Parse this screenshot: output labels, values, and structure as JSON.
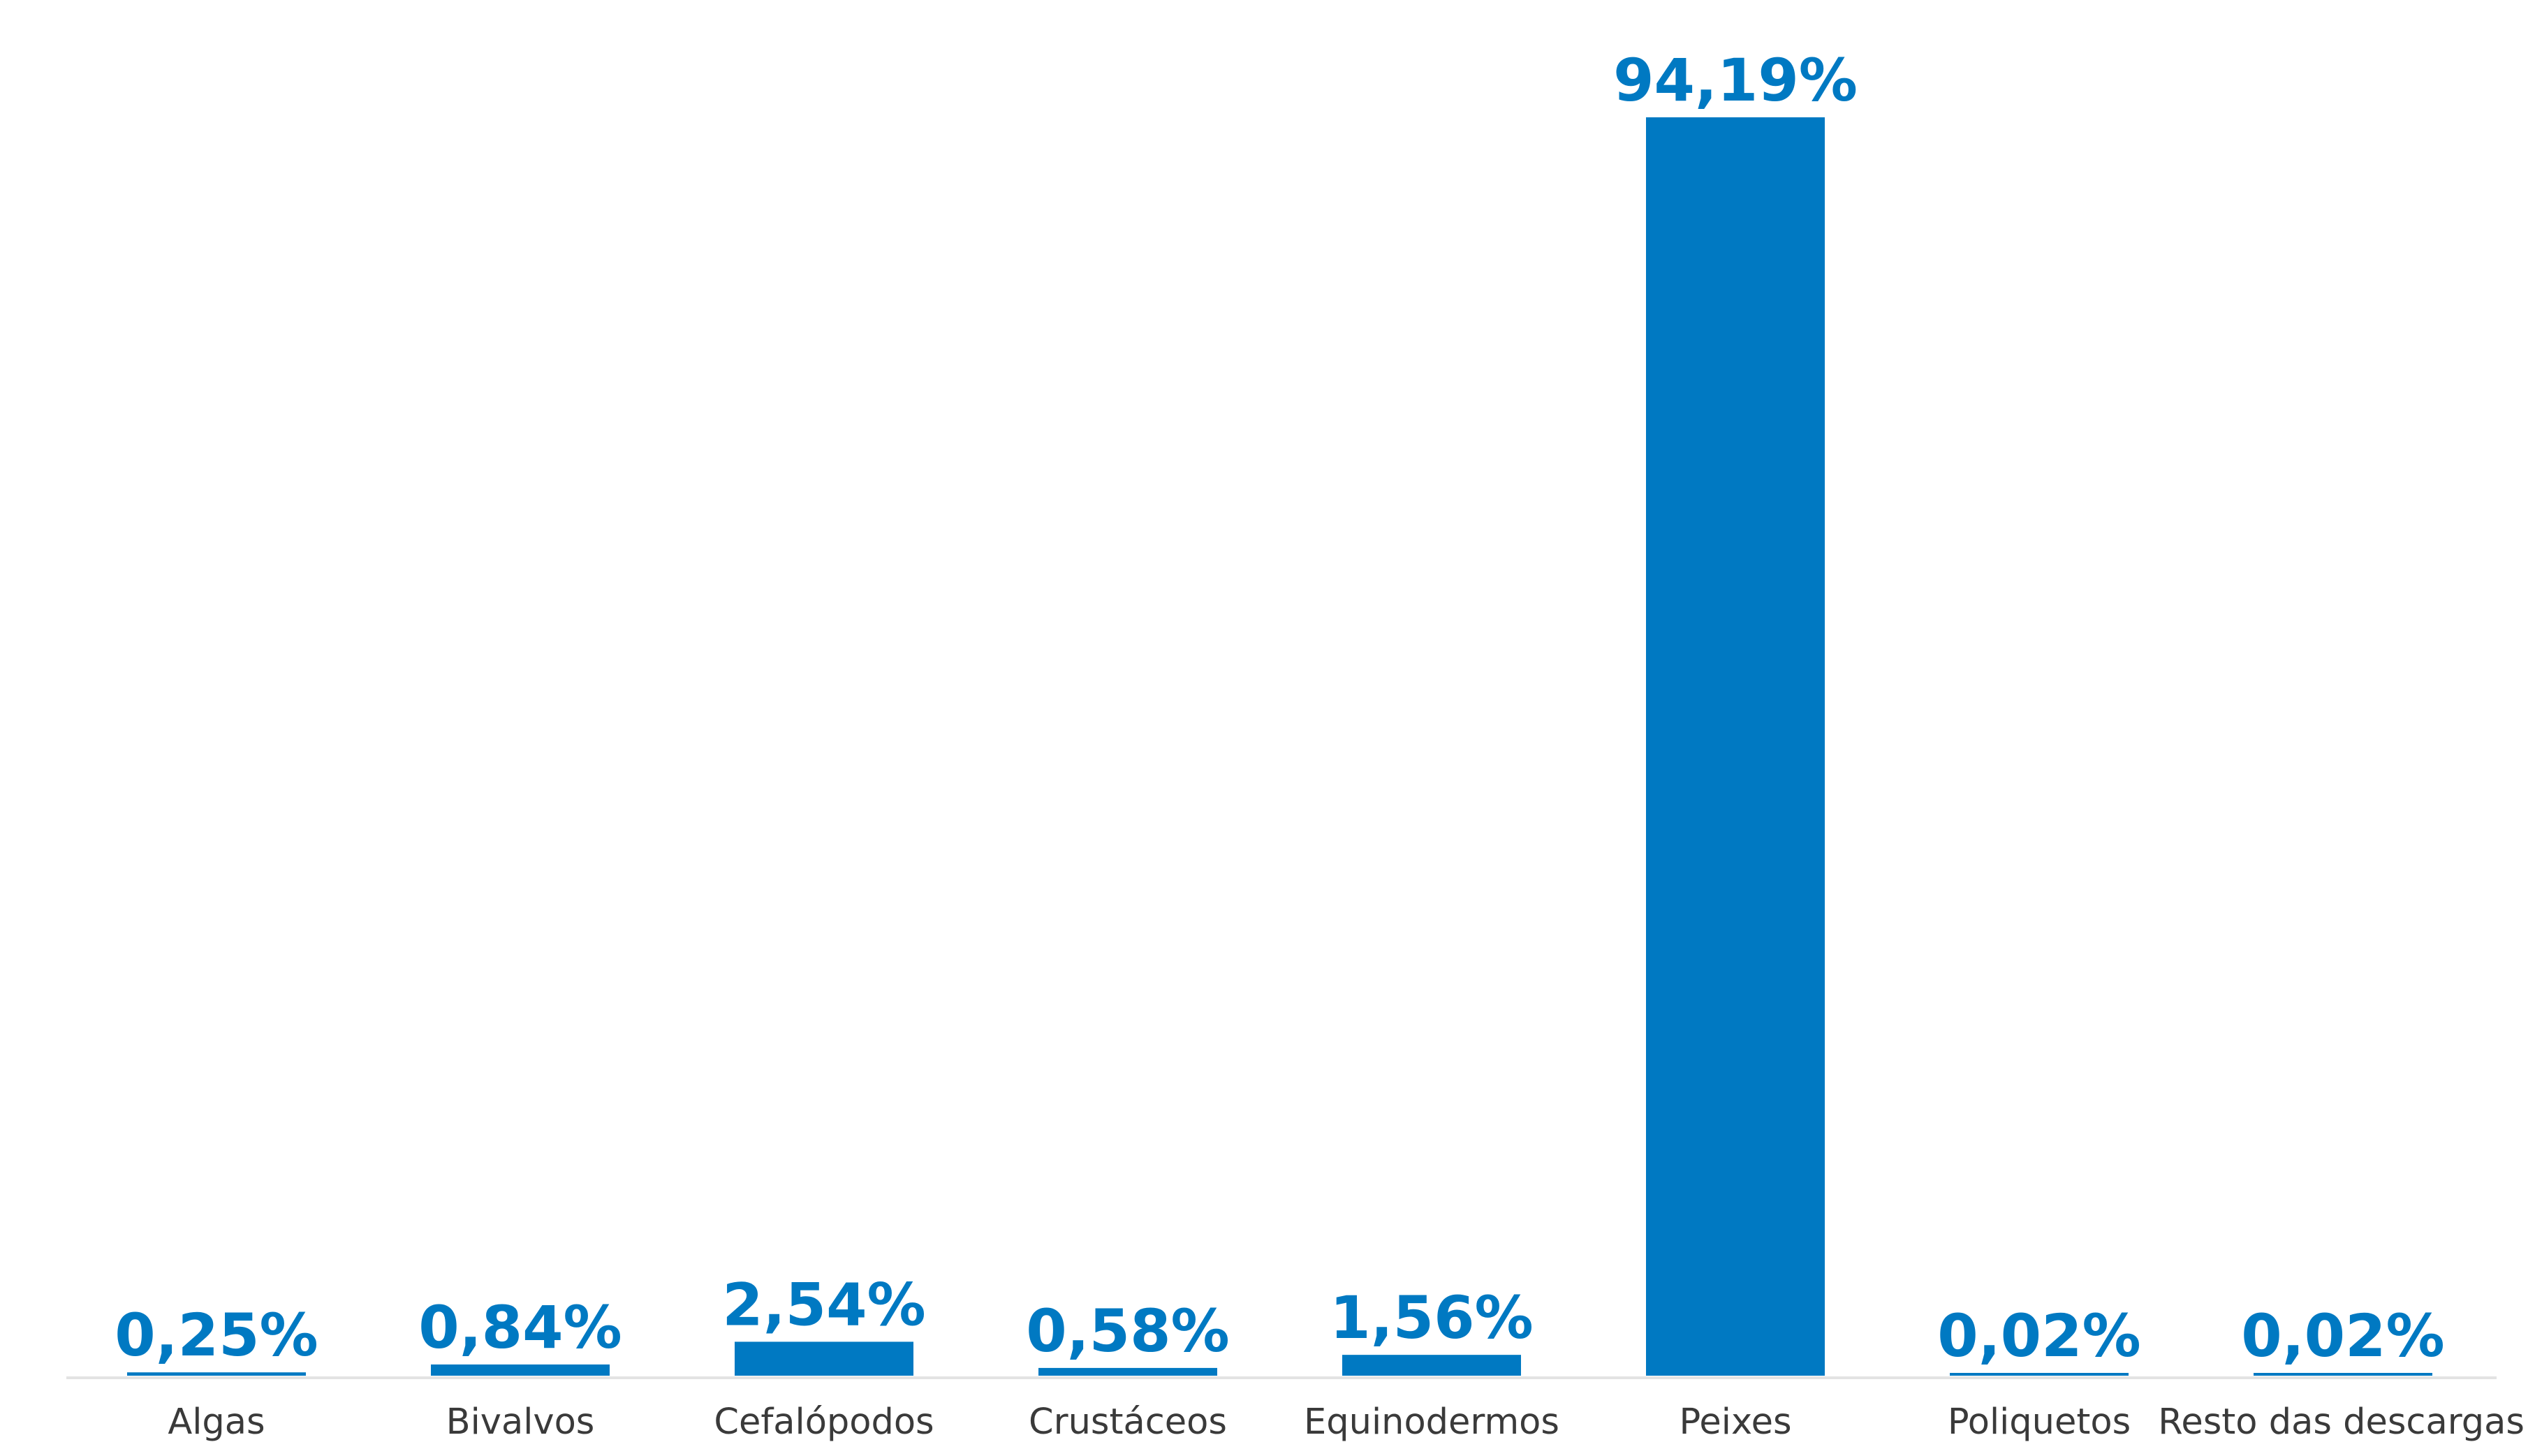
{
  "chart_data": {
    "type": "bar",
    "categories": [
      "Algas",
      "Bivalvos",
      "Cefalópodos",
      "Crustáceos",
      "Equinodermos",
      "Peixes",
      "Poliquetos",
      "Resto das descargas"
    ],
    "values": [
      0.25,
      0.84,
      2.54,
      0.58,
      1.56,
      94.19,
      0.02,
      0.02
    ],
    "data_labels": [
      "0,25%",
      "0,84%",
      "2,54%",
      "0,58%",
      "1,56%",
      "94,19%",
      "0,02%",
      "0,02%"
    ],
    "unit": "%",
    "title": "",
    "xlabel": "",
    "ylabel": "",
    "ylim": [
      0,
      94.19
    ],
    "grid": false,
    "legend": "none",
    "colors": {
      "bar": "#0079c2",
      "value_text": "#0079c2",
      "tick_text": "#3a3a3a",
      "axis_line": "#e3e3e3"
    }
  }
}
